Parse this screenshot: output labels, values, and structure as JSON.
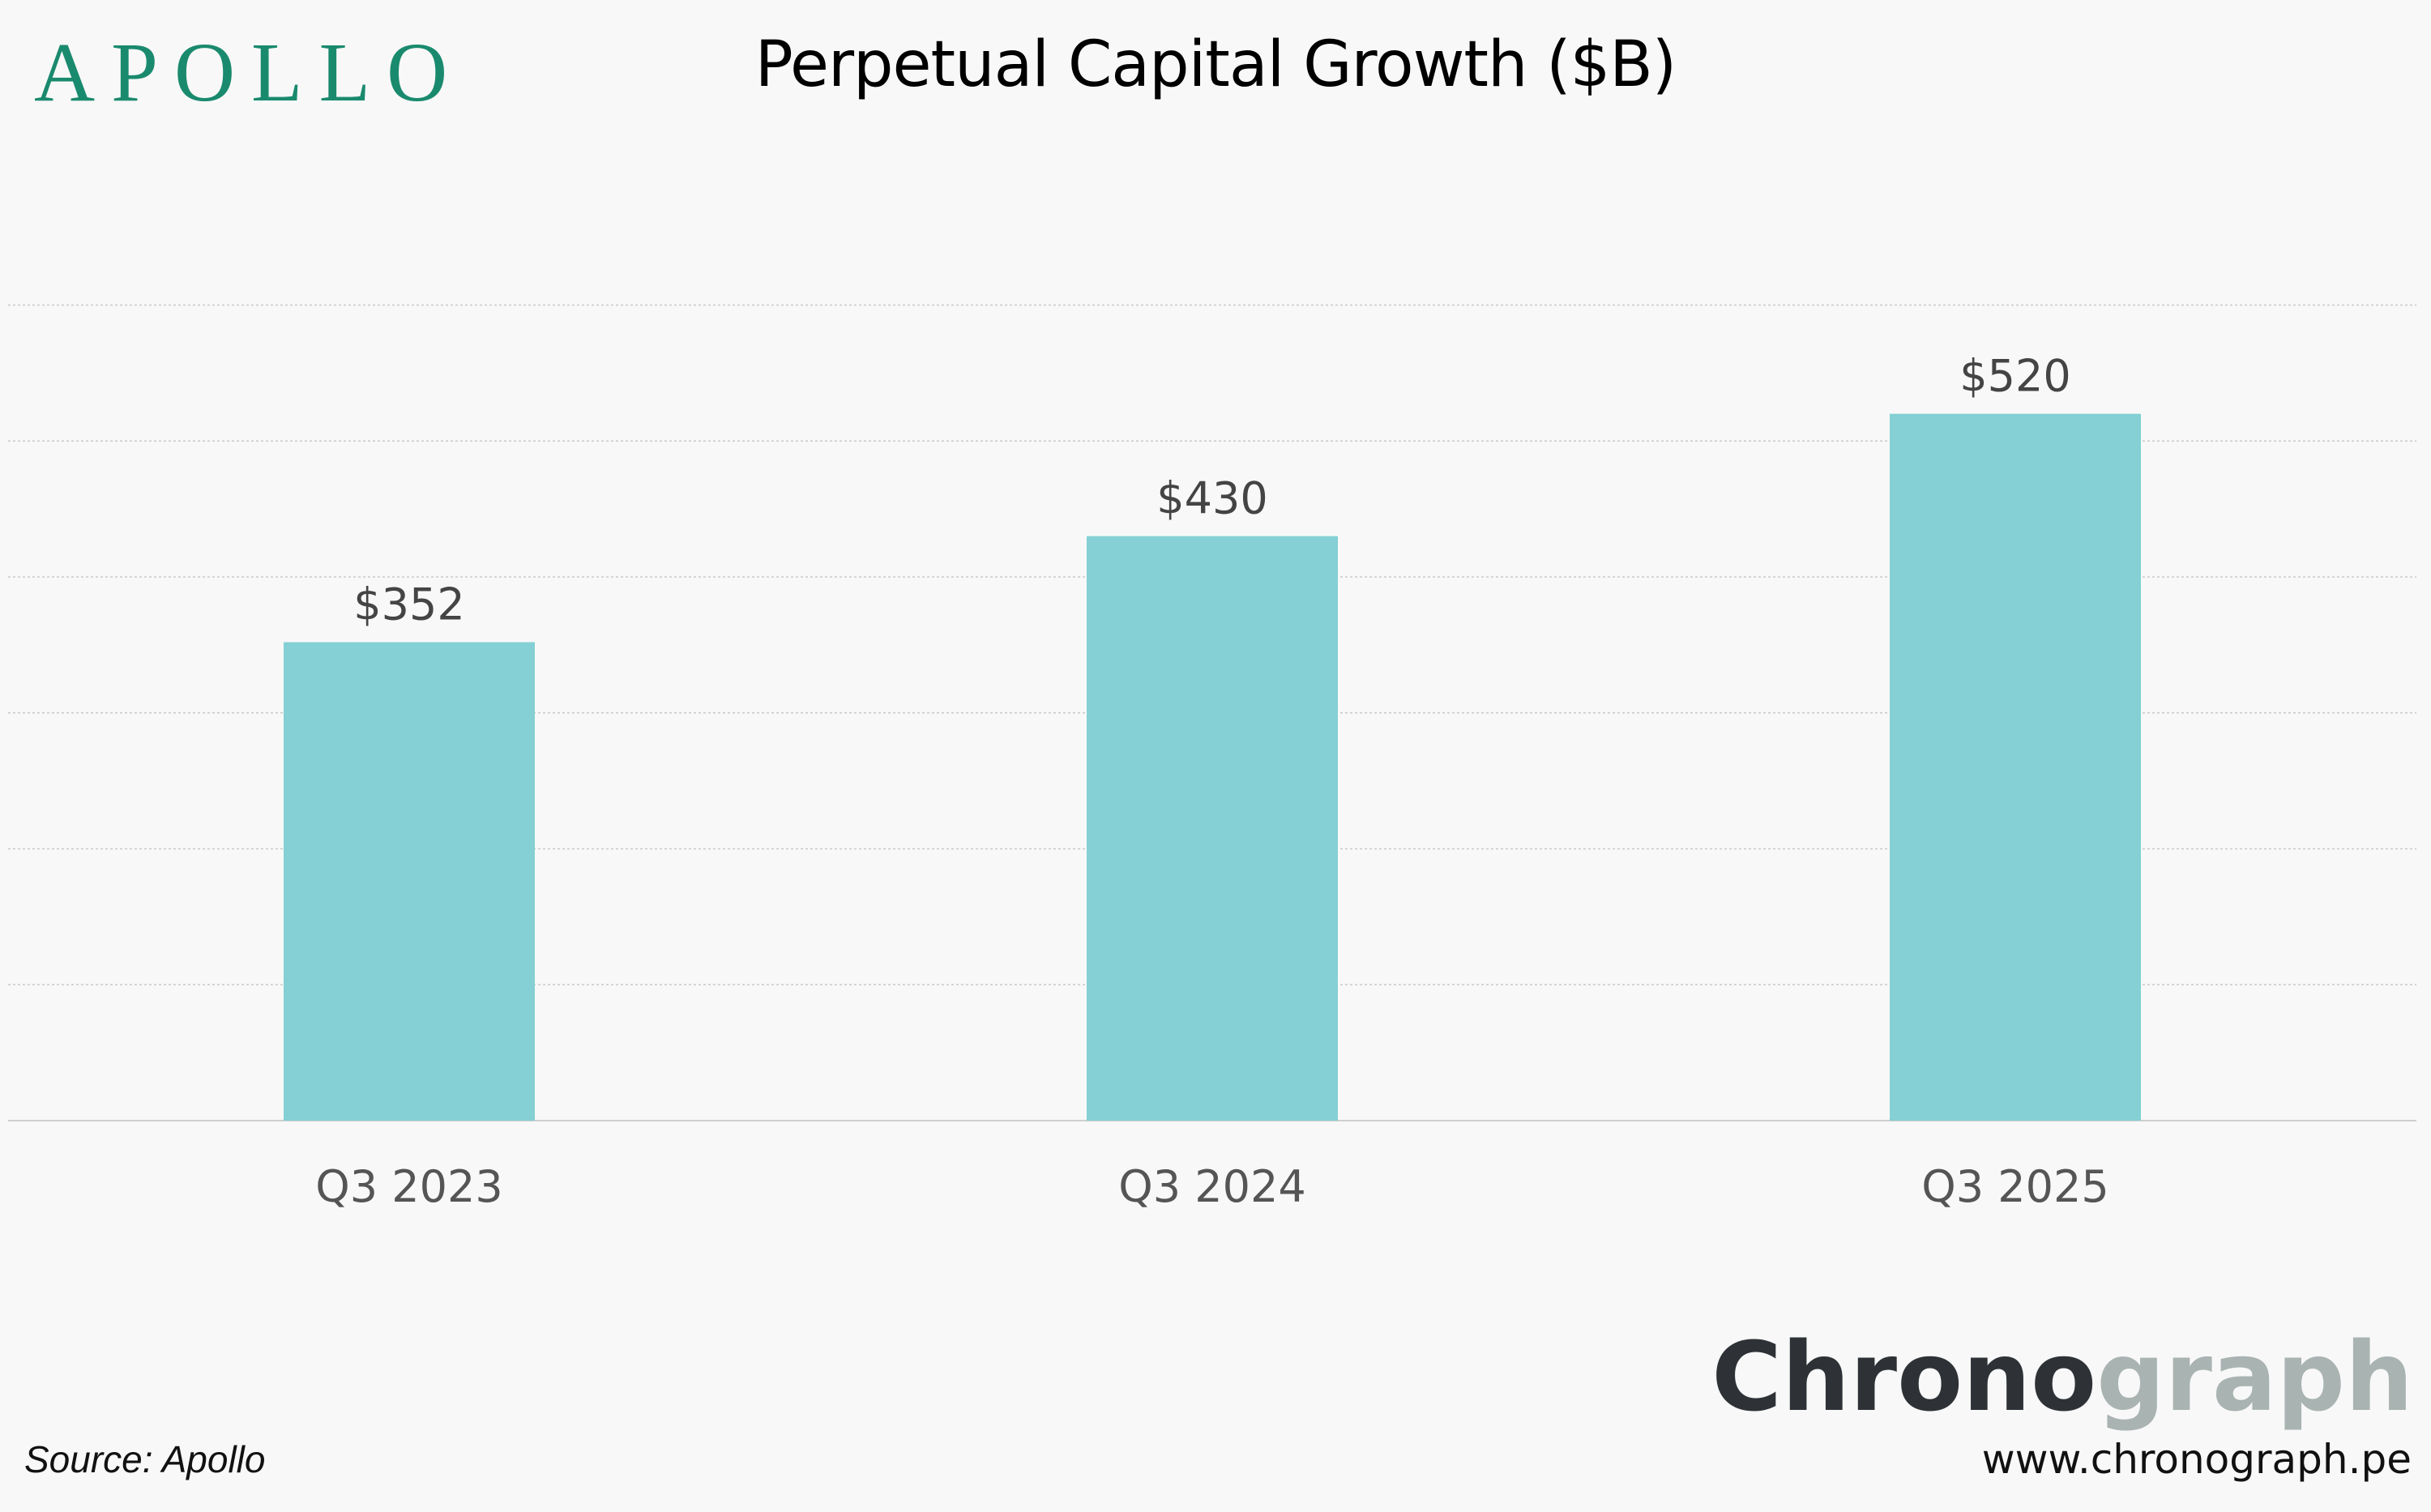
{
  "brand": {
    "logo_text": "APOLLO",
    "color": "#1a8a6e"
  },
  "chart_data": {
    "type": "bar",
    "title": "Perpetual Capital Growth ($B)",
    "categories": [
      "Q3 2023",
      "Q3 2024",
      "Q3 2025"
    ],
    "values": [
      352,
      430,
      520
    ],
    "value_labels": [
      "$352",
      "$430",
      "$520"
    ],
    "xlabel": "",
    "ylabel": "",
    "ylim": [
      0,
      600
    ],
    "grid": true,
    "legend": "none",
    "bar_color": "#84d0d4"
  },
  "footer": {
    "source": "Source: Apollo",
    "publisher_logo_dark": "Chrono",
    "publisher_logo_light": "graph",
    "publisher_url": "www.chronograph.pe",
    "logo_dark_color": "#2e3236",
    "logo_light_color": "#a9b3b2"
  }
}
